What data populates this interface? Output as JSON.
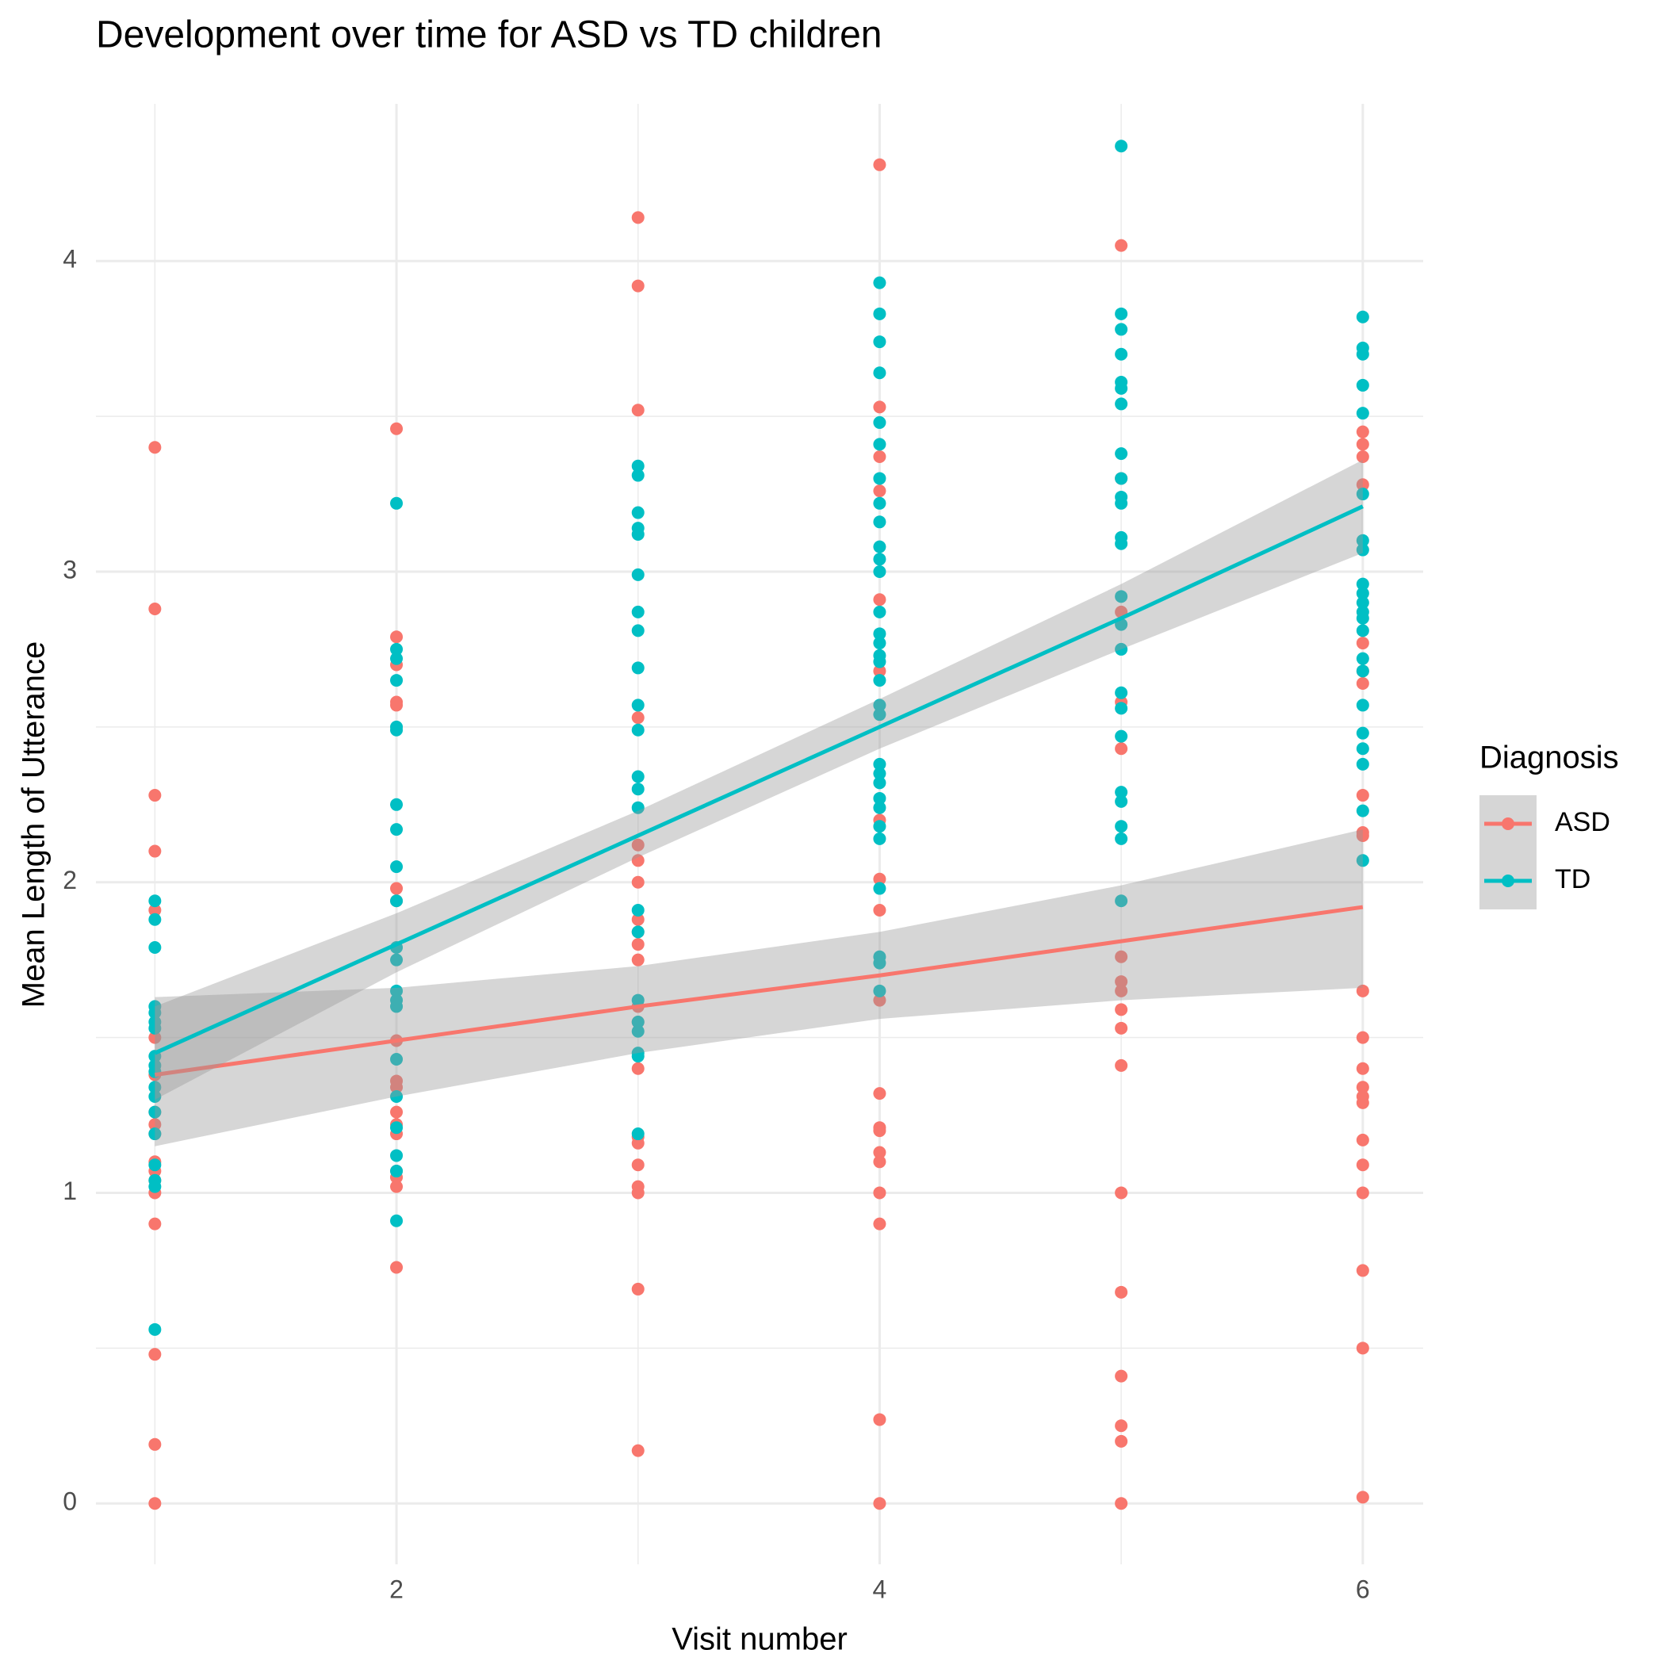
{
  "chart_data": {
    "type": "scatter",
    "title": "Development over time for ASD vs TD children",
    "x_label": "Visit number",
    "y_label": "Mean Length of Utterance",
    "legend_title": "Diagnosis",
    "legend_position": "right",
    "grid": true,
    "xlim": [
      0.756,
      6.25
    ],
    "ylim": [
      -0.196,
      4.506
    ],
    "xticks": [
      2,
      4,
      6
    ],
    "yticks": [
      0,
      1,
      2,
      3,
      4
    ],
    "x_minor_grid": [
      1,
      3,
      5
    ],
    "y_minor_grid": [
      0.5,
      1.5,
      2.5,
      3.5
    ],
    "band_color": "#999999",
    "series": [
      {
        "name": "ASD",
        "color": "#F8766D",
        "x": [
          1,
          1,
          1,
          1,
          1,
          1,
          1,
          1,
          1,
          1,
          1,
          1,
          1,
          1,
          1,
          1,
          1,
          1,
          2,
          2,
          2,
          2,
          2,
          2,
          2,
          2,
          2,
          2,
          2,
          2,
          2,
          2,
          2,
          2,
          2,
          3,
          3,
          3,
          3,
          3,
          3,
          3,
          3,
          3,
          3,
          3,
          3,
          3,
          3,
          3,
          3,
          3,
          3,
          3,
          3,
          3,
          4,
          4,
          4,
          4,
          4,
          4,
          4,
          4,
          4,
          4,
          4,
          4,
          4,
          4,
          4,
          4,
          4,
          4,
          4,
          5,
          5,
          5,
          5,
          5,
          5,
          5,
          5,
          5,
          5,
          5,
          5,
          5,
          5,
          5,
          5,
          5,
          6,
          6,
          6,
          6,
          6,
          6,
          6,
          6,
          6,
          6,
          6,
          6,
          6,
          6,
          6,
          6,
          6,
          6,
          6,
          6,
          6,
          6
        ],
        "values": [
          3.4,
          2.88,
          2.28,
          2.1,
          1.91,
          1.5,
          1.38,
          1.26,
          1.22,
          1.19,
          1.1,
          1.07,
          1.04,
          1.0,
          0.9,
          0.48,
          0.19,
          0.0,
          3.46,
          2.79,
          2.7,
          2.58,
          2.57,
          1.98,
          1.94,
          1.49,
          1.36,
          1.34,
          1.26,
          1.22,
          1.19,
          1.07,
          1.05,
          1.02,
          0.76,
          4.14,
          3.92,
          3.52,
          2.53,
          2.12,
          2.07,
          2.0,
          1.88,
          1.84,
          1.8,
          1.75,
          1.6,
          1.55,
          1.4,
          1.18,
          1.16,
          1.09,
          1.02,
          1.0,
          0.69,
          0.17,
          4.31,
          3.53,
          3.37,
          3.26,
          2.91,
          2.68,
          2.2,
          2.01,
          1.91,
          1.62,
          1.32,
          1.21,
          1.2,
          1.13,
          1.1,
          1.0,
          0.9,
          0.27,
          0.0,
          4.05,
          3.3,
          2.87,
          2.58,
          2.43,
          1.76,
          1.68,
          1.65,
          1.59,
          1.53,
          1.41,
          1.0,
          0.68,
          0.41,
          0.25,
          0.2,
          0.0,
          3.45,
          3.41,
          3.37,
          3.28,
          2.77,
          2.68,
          2.64,
          2.28,
          2.16,
          2.15,
          1.65,
          1.5,
          1.4,
          1.34,
          1.31,
          1.29,
          1.17,
          1.09,
          1.0,
          0.75,
          0.5,
          0.02
        ],
        "fit_x": [
          1,
          2,
          3,
          4,
          5,
          6
        ],
        "fit": [
          1.38,
          1.49,
          1.6,
          1.7,
          1.81,
          1.92
        ],
        "fit_lower": [
          1.15,
          1.31,
          1.45,
          1.56,
          1.62,
          1.66
        ],
        "fit_upper": [
          1.63,
          1.66,
          1.73,
          1.84,
          1.99,
          2.17
        ]
      },
      {
        "name": "TD",
        "color": "#00BFC4",
        "x": [
          1,
          1,
          1,
          1,
          1,
          1,
          1,
          1,
          1,
          1,
          1,
          1,
          1,
          1,
          1,
          1,
          1,
          1,
          2,
          2,
          2,
          2,
          2,
          2,
          2,
          2,
          2,
          2,
          2,
          2,
          2,
          2,
          2,
          2,
          2,
          2,
          2,
          2,
          2,
          3,
          3,
          3,
          3,
          3,
          3,
          3,
          3,
          3,
          3,
          3,
          3,
          3,
          3,
          3,
          3,
          3,
          3,
          3,
          3,
          3,
          3,
          4,
          4,
          4,
          4,
          4,
          4,
          4,
          4,
          4,
          4,
          4,
          4,
          4,
          4,
          4,
          4,
          4,
          4,
          4,
          4,
          4,
          4,
          4,
          4,
          4,
          4,
          4,
          4,
          4,
          4,
          4,
          5,
          5,
          5,
          5,
          5,
          5,
          5,
          5,
          5,
          5,
          5,
          5,
          5,
          5,
          5,
          5,
          5,
          5,
          5,
          5,
          5,
          5,
          5,
          5,
          6,
          6,
          6,
          6,
          6,
          6,
          6,
          6,
          6,
          6,
          6,
          6,
          6,
          6,
          6,
          6,
          6,
          6,
          6,
          6,
          6,
          6
        ],
        "values": [
          1.94,
          1.88,
          1.79,
          1.6,
          1.58,
          1.55,
          1.53,
          1.44,
          1.41,
          1.39,
          1.34,
          1.31,
          1.26,
          1.19,
          1.09,
          1.04,
          1.02,
          0.56,
          3.22,
          2.75,
          2.72,
          2.65,
          2.5,
          2.49,
          2.25,
          2.17,
          2.05,
          1.94,
          1.79,
          1.75,
          1.65,
          1.62,
          1.6,
          1.43,
          1.31,
          1.21,
          1.12,
          1.07,
          0.91,
          3.34,
          3.31,
          3.19,
          3.14,
          3.12,
          2.99,
          2.87,
          2.81,
          2.69,
          2.57,
          2.49,
          2.34,
          2.3,
          2.24,
          1.91,
          1.84,
          1.62,
          1.55,
          1.52,
          1.45,
          1.44,
          1.19,
          3.93,
          3.83,
          3.74,
          3.64,
          3.48,
          3.41,
          3.3,
          3.22,
          3.16,
          3.08,
          3.04,
          3.0,
          2.87,
          2.8,
          2.77,
          2.73,
          2.71,
          2.65,
          2.57,
          2.54,
          2.38,
          2.35,
          2.32,
          2.27,
          2.24,
          2.18,
          2.14,
          1.98,
          1.76,
          1.74,
          1.65,
          4.37,
          3.83,
          3.78,
          3.7,
          3.61,
          3.59,
          3.54,
          3.38,
          3.3,
          3.24,
          3.22,
          3.11,
          3.09,
          2.92,
          2.83,
          2.75,
          2.61,
          2.56,
          2.47,
          2.29,
          2.26,
          2.18,
          2.14,
          1.94,
          3.82,
          3.72,
          3.7,
          3.6,
          3.51,
          3.25,
          3.1,
          3.07,
          2.96,
          2.93,
          2.9,
          2.87,
          2.85,
          2.81,
          2.72,
          2.68,
          2.57,
          2.48,
          2.43,
          2.38,
          2.23,
          2.07
        ],
        "fit_x": [
          1,
          2,
          3,
          4,
          5,
          6
        ],
        "fit": [
          1.45,
          1.8,
          2.15,
          2.5,
          2.85,
          3.21
        ],
        "fit_lower": [
          1.3,
          1.71,
          2.08,
          2.43,
          2.75,
          3.06
        ],
        "fit_upper": [
          1.6,
          1.9,
          2.23,
          2.59,
          2.96,
          3.36
        ]
      }
    ]
  }
}
